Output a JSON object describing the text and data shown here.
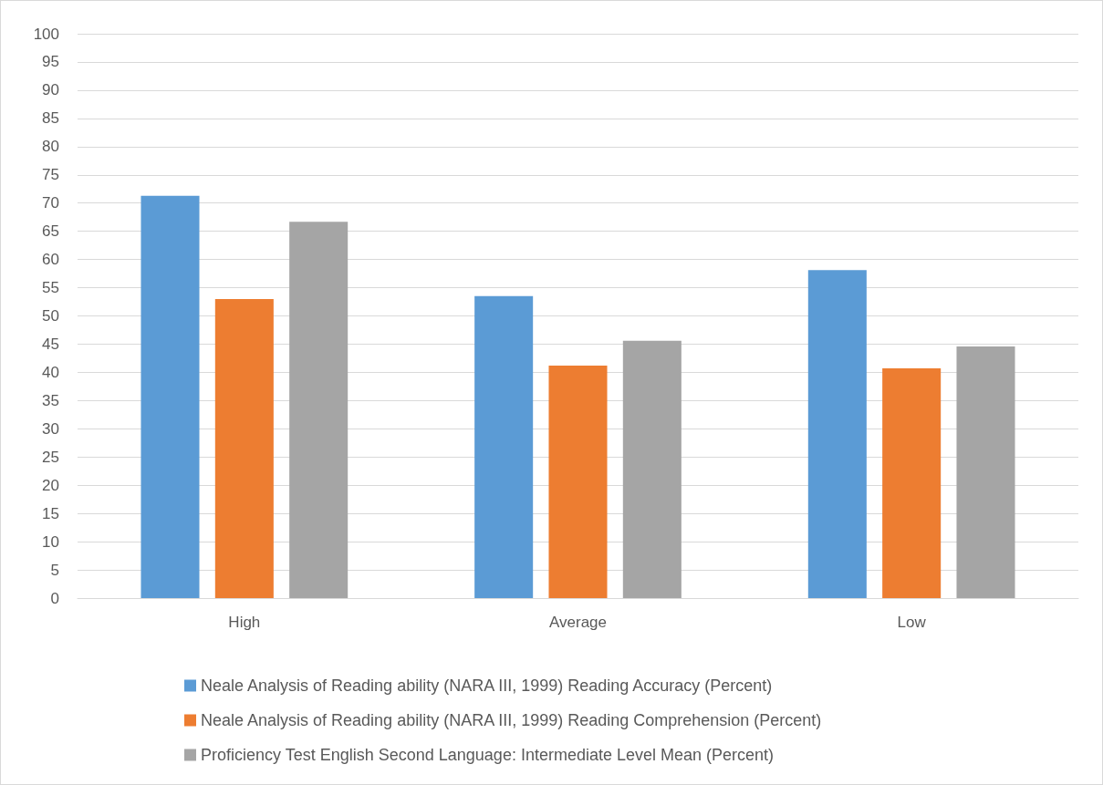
{
  "chart_data": {
    "type": "bar",
    "categories": [
      "High",
      "Average",
      "Low"
    ],
    "series": [
      {
        "name": "Neale Analysis of Reading ability (NARA III, 1999) Reading Accuracy (Percent)",
        "color": "#5b9bd5",
        "values": [
          71.3,
          53.5,
          58.1
        ]
      },
      {
        "name": "Neale Analysis of Reading ability (NARA III, 1999) Reading Comprehension (Percent)",
        "color": "#ed7d31",
        "values": [
          53.0,
          41.2,
          40.7
        ]
      },
      {
        "name": "Proficiency Test English Second Language: Intermediate Level Mean (Percent)",
        "color": "#a5a5a5",
        "values": [
          66.7,
          45.6,
          44.6
        ]
      }
    ],
    "ylim": [
      0,
      100
    ],
    "yticks": [
      0,
      5,
      10,
      15,
      20,
      25,
      30,
      35,
      40,
      45,
      50,
      55,
      60,
      65,
      70,
      75,
      80,
      85,
      90,
      95,
      100
    ],
    "grid": "y",
    "legend": "bottom"
  }
}
